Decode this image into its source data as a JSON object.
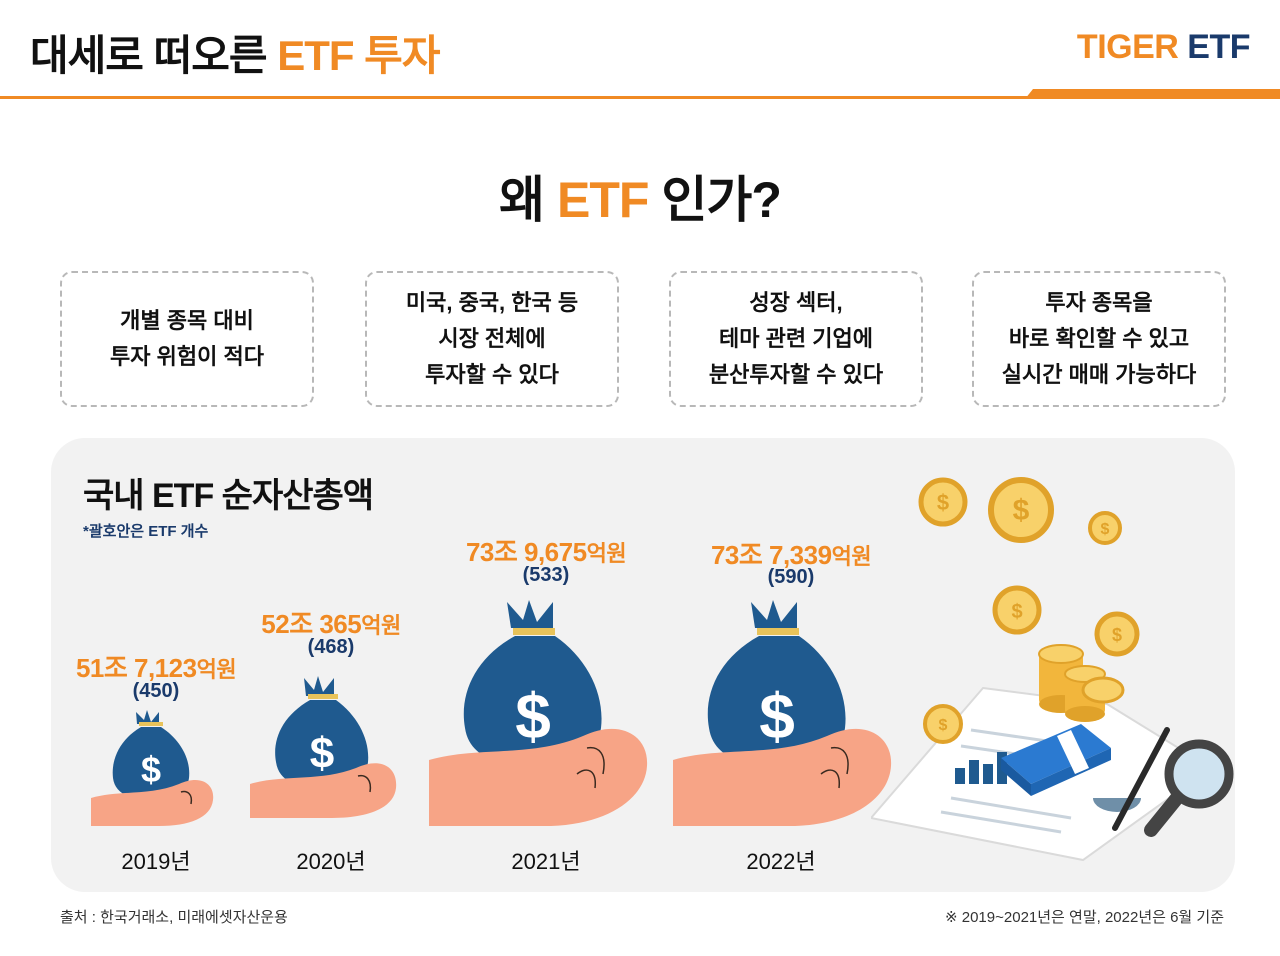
{
  "header": {
    "title_main": "대세로 떠오른 ",
    "title_accent": "ETF 투자",
    "brand_tiger": "TIGER",
    "brand_etf": "ETF"
  },
  "question": {
    "prefix": "왜 ",
    "accent": "ETF",
    "suffix": " 인가?"
  },
  "reasons": [
    {
      "line1": "개별 종목 대비",
      "line2": "투자 위험이 적다",
      "line3": ""
    },
    {
      "line1": "미국, 중국, 한국 등",
      "line2": "시장 전체에",
      "line3": "투자할 수 있다"
    },
    {
      "line1": "성장 섹터,",
      "line2": "테마 관련 기업에",
      "line3": "분산투자할 수 있다"
    },
    {
      "line1": "투자 종목을",
      "line2": "바로 확인할 수 있고",
      "line3": "실시간 매매 가능하다"
    }
  ],
  "panel": {
    "title": "국내 ETF 순자산총액",
    "note": "*괄호안은 ETF 개수"
  },
  "bars": [
    {
      "year": "2019년",
      "amount_num": "51조 7,123",
      "amount_unit": "억원",
      "count": "(450)"
    },
    {
      "year": "2020년",
      "amount_num": "52조 365",
      "amount_unit": "억원",
      "count": "(468)"
    },
    {
      "year": "2021년",
      "amount_num": "73조 9,675",
      "amount_unit": "억원",
      "count": "(533)"
    },
    {
      "year": "2022년",
      "amount_num": "73조 7,339",
      "amount_unit": "억원",
      "count": "(590)"
    }
  ],
  "footer": {
    "source": "출처 : 한국거래소, 미래에셋자산운용",
    "basis": "※ 2019~2021년은 연말, 2022년은 6월 기준"
  },
  "colors": {
    "accent": "#f08a24",
    "navy": "#1a3a6b",
    "bag": "#1f5a8f",
    "hand": "#f7a486"
  },
  "icons": [
    "money-bag-icon",
    "hand-icon",
    "coin-icon",
    "document-icon",
    "magnifier-icon",
    "pen-icon",
    "cash-stack-icon"
  ]
}
